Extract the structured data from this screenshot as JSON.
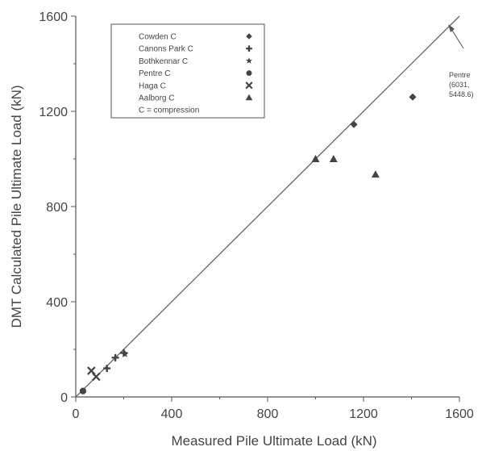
{
  "chart_data": {
    "type": "scatter",
    "xlabel": "Measured Pile Ultimate Load (kN)",
    "ylabel": "DMT Calculated Pile Ultimate Load (kN)",
    "xlim": [
      0,
      1600
    ],
    "ylim": [
      0,
      1600
    ],
    "xticks": [
      "0",
      "400",
      "800",
      "1200",
      "1600"
    ],
    "yticks": [
      "0",
      "400",
      "800",
      "1200",
      "1600"
    ],
    "grid": false,
    "legend_position": "top-left",
    "reference_line": {
      "x": [
        0,
        1600
      ],
      "y": [
        0,
        1600
      ]
    },
    "series": [
      {
        "name": "Cowden C",
        "marker": "diamond",
        "points": [
          [
            1160,
            1145
          ],
          [
            1405,
            1260
          ]
        ]
      },
      {
        "name": "Canons Park C",
        "marker": "plus",
        "points": [
          [
            130,
            120
          ],
          [
            165,
            165
          ],
          [
            200,
            185
          ]
        ]
      },
      {
        "name": "Bothkennar C",
        "marker": "star",
        "points": [
          [
            205,
            180
          ]
        ]
      },
      {
        "name": "Pentre C",
        "marker": "octagon",
        "points": [
          [
            30,
            25
          ]
        ]
      },
      {
        "name": "Haga C",
        "marker": "x",
        "points": [
          [
            65,
            110
          ],
          [
            85,
            85
          ]
        ]
      },
      {
        "name": "Aalborg C",
        "marker": "triangle",
        "points": [
          [
            1000,
            1000
          ],
          [
            1075,
            1000
          ],
          [
            1250,
            935
          ]
        ]
      }
    ],
    "legend_note": "C = compression",
    "annotation": {
      "lines": [
        "Pentre",
        "(6031,",
        "5448.6)"
      ]
    }
  }
}
